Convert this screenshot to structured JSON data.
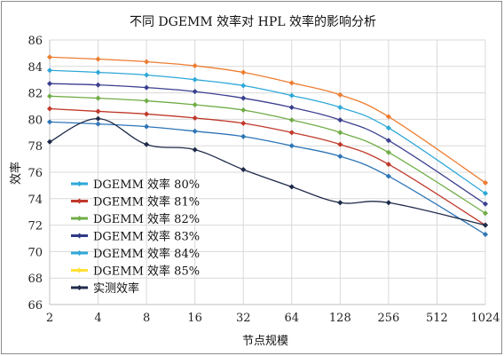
{
  "chart_data": {
    "type": "line",
    "title": "不同 DGEMM 效率对 HPL 效率的影响分析",
    "xlabel": "节点规模",
    "ylabel": "效率",
    "x_scale": "log2",
    "x": [
      2,
      4,
      8,
      16,
      32,
      64,
      128,
      256,
      512,
      1024
    ],
    "x_ticks": [
      "2",
      "4",
      "8",
      "16",
      "32",
      "64",
      "128",
      "256",
      "512",
      "1024"
    ],
    "ylim": [
      66,
      86
    ],
    "y_ticks": [
      66,
      68,
      70,
      72,
      74,
      76,
      78,
      80,
      82,
      84,
      86
    ],
    "grid": true,
    "legend_placement": "left",
    "series": [
      {
        "name": "DGEMM 效率 80%",
        "color": "#2E75B6",
        "marker": "diamond",
        "values": [
          79.8,
          79.65,
          79.45,
          79.1,
          78.7,
          78.0,
          77.2,
          75.7,
          null,
          71.3
        ]
      },
      {
        "name": "DGEMM 效率 81%",
        "color": "#C0392B",
        "marker": "diamond",
        "values": [
          80.8,
          80.6,
          80.4,
          80.1,
          79.7,
          79.0,
          78.1,
          76.6,
          null,
          72.0
        ]
      },
      {
        "name": "DGEMM 效率 82%",
        "color": "#70AD47",
        "marker": "diamond",
        "values": [
          81.75,
          81.6,
          81.4,
          81.1,
          80.7,
          79.95,
          79.0,
          77.5,
          null,
          72.9
        ]
      },
      {
        "name": "DGEMM 效率 83%",
        "color": "#3B3F8F",
        "marker": "diamond",
        "values": [
          82.7,
          82.6,
          82.4,
          82.1,
          81.6,
          80.9,
          79.95,
          78.4,
          null,
          73.6
        ]
      },
      {
        "name": "DGEMM 效率 84%",
        "color": "#2FA8D8",
        "marker": "diamond",
        "values": [
          83.7,
          83.55,
          83.35,
          83.0,
          82.55,
          81.8,
          80.9,
          79.35,
          null,
          74.4
        ]
      },
      {
        "name": "DGEMM 效率 85%",
        "color": "#ED7D31",
        "marker": "diamond",
        "values": [
          84.7,
          84.55,
          84.35,
          84.05,
          83.55,
          82.75,
          81.85,
          80.2,
          null,
          75.2
        ]
      },
      {
        "name": "实测效率",
        "color": "#1F2B4A",
        "marker": "diamond",
        "values": [
          78.3,
          80.05,
          78.1,
          77.7,
          76.2,
          74.9,
          73.7,
          73.7,
          null,
          72.0
        ]
      }
    ]
  }
}
